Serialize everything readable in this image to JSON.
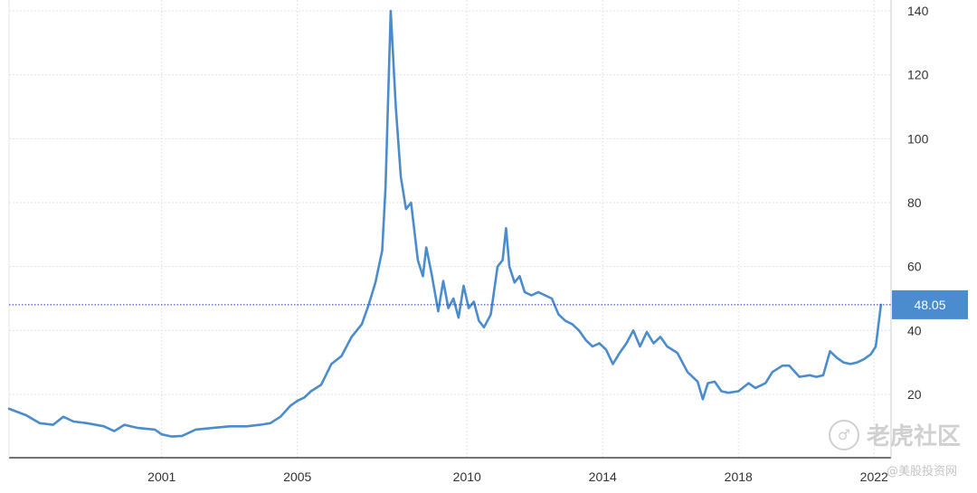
{
  "chart_data": {
    "type": "line",
    "title": "",
    "xlabel": "",
    "ylabel": "",
    "xlim": [
      1996.5,
      2022.5
    ],
    "ylim": [
      0,
      142
    ],
    "x_ticks": [
      "2001",
      "2005",
      "2010",
      "2014",
      "2018",
      "2022"
    ],
    "x_tick_values": [
      2001,
      2005,
      2010,
      2014,
      2018,
      2022
    ],
    "y_ticks": [
      "140",
      "120",
      "100",
      "80",
      "60",
      "40",
      "20"
    ],
    "y_tick_values": [
      140,
      120,
      100,
      80,
      60,
      40,
      20
    ],
    "grid": true,
    "legend": "none",
    "series": [
      {
        "color": "#4a8ccd",
        "x": [
          1996.5,
          1997.0,
          1997.4,
          1997.8,
          1998.1,
          1998.4,
          1998.8,
          1999.3,
          1999.6,
          1999.9,
          2000.3,
          2000.8,
          2001.0,
          2001.3,
          2001.6,
          2002.0,
          2002.5,
          2003.0,
          2003.5,
          2003.9,
          2004.2,
          2004.5,
          2004.8,
          2005.0,
          2005.2,
          2005.4,
          2005.7,
          2006.0,
          2006.3,
          2006.6,
          2006.9,
          2007.1,
          2007.3,
          2007.5,
          2007.6,
          2007.75,
          2007.9,
          2008.05,
          2008.2,
          2008.35,
          2008.55,
          2008.7,
          2008.8,
          2008.95,
          2009.15,
          2009.3,
          2009.45,
          2009.6,
          2009.75,
          2009.9,
          2010.05,
          2010.2,
          2010.35,
          2010.5,
          2010.7,
          2010.9,
          2011.05,
          2011.15,
          2011.25,
          2011.4,
          2011.55,
          2011.7,
          2011.9,
          2012.1,
          2012.3,
          2012.5,
          2012.7,
          2012.9,
          2013.1,
          2013.3,
          2013.5,
          2013.7,
          2013.9,
          2014.1,
          2014.3,
          2014.5,
          2014.7,
          2014.9,
          2015.1,
          2015.3,
          2015.5,
          2015.7,
          2015.9,
          2016.2,
          2016.5,
          2016.8,
          2016.95,
          2017.1,
          2017.3,
          2017.5,
          2017.7,
          2018.0,
          2018.3,
          2018.5,
          2018.8,
          2019.0,
          2019.3,
          2019.5,
          2019.8,
          2020.1,
          2020.3,
          2020.5,
          2020.7,
          2020.9,
          2021.1,
          2021.3,
          2021.5,
          2021.7,
          2021.9,
          2022.05,
          2022.2
        ],
        "y": [
          15.5,
          13.5,
          11.0,
          10.5,
          13.0,
          11.5,
          11.0,
          10.0,
          8.5,
          10.5,
          9.5,
          9.0,
          7.5,
          6.8,
          7.0,
          9.0,
          9.5,
          10.0,
          10.0,
          10.5,
          11.0,
          13.0,
          16.5,
          18.0,
          19.0,
          21.0,
          23.0,
          29.5,
          32.0,
          38.0,
          42.0,
          48.0,
          55.0,
          65.0,
          85.0,
          140.0,
          110.0,
          88.0,
          78.0,
          80.0,
          62.0,
          57.0,
          66.0,
          58.0,
          46.0,
          55.5,
          47.0,
          50.0,
          44.0,
          54.0,
          47.0,
          49.0,
          43.0,
          41.0,
          45.0,
          60.0,
          62.0,
          72.0,
          60.0,
          55.0,
          57.0,
          52.0,
          51.0,
          52.0,
          51.0,
          50.0,
          45.0,
          43.0,
          42.0,
          40.0,
          37.0,
          35.0,
          36.0,
          34.0,
          29.5,
          33.0,
          36.0,
          40.0,
          35.0,
          39.5,
          36.0,
          38.0,
          35.0,
          33.0,
          27.0,
          24.0,
          18.5,
          23.5,
          24.0,
          21.0,
          20.5,
          21.0,
          23.5,
          22.0,
          23.5,
          27.0,
          29.0,
          29.0,
          25.5,
          26.0,
          25.5,
          26.0,
          33.5,
          31.5,
          30.0,
          29.5,
          30.0,
          31.0,
          32.5,
          35.0,
          48.05
        ]
      }
    ],
    "current_value": "48.05",
    "current_value_y": 48.05
  },
  "watermark": {
    "brand": "老虎社区",
    "logo_glyph": "♂",
    "handle": "@美股投资网"
  }
}
